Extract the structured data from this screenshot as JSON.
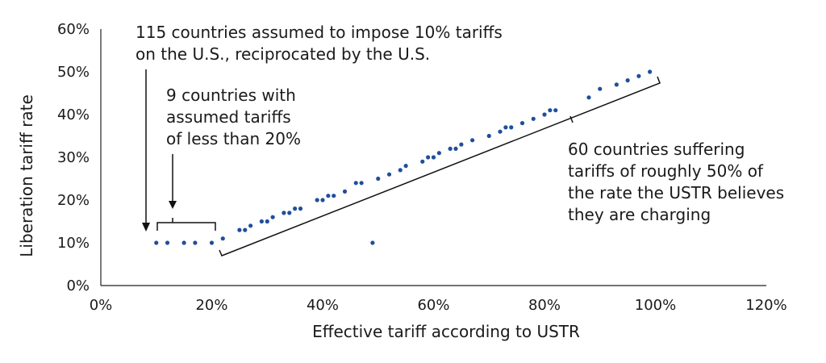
{
  "chart_data": {
    "type": "scatter",
    "title": "",
    "xlabel": "Effective tariff according to USTR",
    "ylabel": "Liberation tariff rate",
    "xlim": [
      0,
      120
    ],
    "ylim": [
      0,
      60
    ],
    "x_ticks": [
      "0%",
      "20%",
      "40%",
      "60%",
      "80%",
      "100%",
      "120%"
    ],
    "y_ticks": [
      "0%",
      "10%",
      "20%",
      "30%",
      "40%",
      "50%",
      "60%"
    ],
    "grid": false,
    "legend": "none",
    "color": "#1f4e9c",
    "points": [
      [
        10,
        10
      ],
      [
        12,
        10
      ],
      [
        15,
        10
      ],
      [
        17,
        10
      ],
      [
        20,
        10
      ],
      [
        22,
        11
      ],
      [
        25,
        13
      ],
      [
        26,
        13
      ],
      [
        27,
        14
      ],
      [
        29,
        15
      ],
      [
        30,
        15
      ],
      [
        31,
        16
      ],
      [
        33,
        17
      ],
      [
        34,
        17
      ],
      [
        35,
        18
      ],
      [
        36,
        18
      ],
      [
        39,
        20
      ],
      [
        40,
        20
      ],
      [
        41,
        21
      ],
      [
        42,
        21
      ],
      [
        44,
        22
      ],
      [
        46,
        24
      ],
      [
        47,
        24
      ],
      [
        49,
        10
      ],
      [
        50,
        25
      ],
      [
        52,
        26
      ],
      [
        54,
        27
      ],
      [
        55,
        28
      ],
      [
        58,
        29
      ],
      [
        59,
        30
      ],
      [
        60,
        30
      ],
      [
        61,
        31
      ],
      [
        63,
        32
      ],
      [
        64,
        32
      ],
      [
        65,
        33
      ],
      [
        67,
        34
      ],
      [
        70,
        35
      ],
      [
        72,
        36
      ],
      [
        73,
        37
      ],
      [
        74,
        37
      ],
      [
        76,
        38
      ],
      [
        78,
        39
      ],
      [
        80,
        40
      ],
      [
        81,
        41
      ],
      [
        82,
        41
      ],
      [
        88,
        44
      ],
      [
        90,
        46
      ],
      [
        93,
        47
      ],
      [
        95,
        48
      ],
      [
        97,
        49
      ],
      [
        99,
        50
      ]
    ],
    "annotations": {
      "a115": [
        "115 countries assumed to impose 10% tariffs",
        "on the U.S., reciprocated by the U.S."
      ],
      "a9": [
        "9 countries with",
        "assumed tariffs",
        "of less than 20%"
      ],
      "a60": [
        "60 countries suffering",
        "tariffs of roughly 50% of",
        "the rate the USTR believes",
        "they are charging"
      ]
    }
  }
}
